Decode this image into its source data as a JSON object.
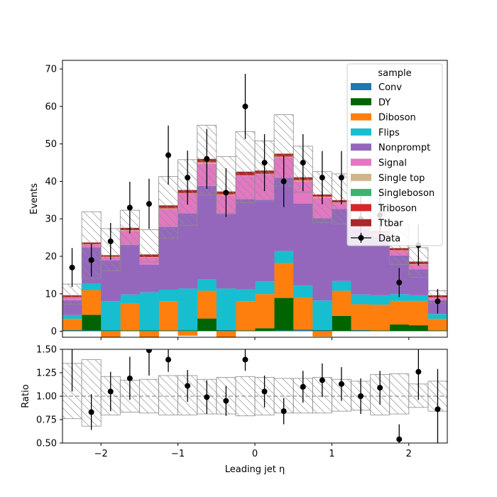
{
  "chart_data": {
    "type": "bar",
    "xlabel": "Leading jet  η",
    "x_edges": [
      -2.5,
      -2.25,
      -2.0,
      -1.75,
      -1.5,
      -1.25,
      -1.0,
      -0.75,
      -0.5,
      -0.25,
      0.0,
      0.25,
      0.5,
      0.75,
      1.0,
      1.25,
      1.5,
      1.75,
      2.0,
      2.25,
      2.5
    ],
    "main": {
      "ylabel": "Events",
      "ylim": [
        -1.6,
        72.3
      ],
      "yticks": [
        0,
        10,
        20,
        30,
        40,
        50,
        60,
        70
      ],
      "stack_order": [
        "Conv",
        "DY",
        "Diboson",
        "Flips",
        "Nonprompt",
        "Signal",
        "Single top",
        "Singleboson",
        "Triboson",
        "Ttbar"
      ],
      "series": [
        {
          "name": "Conv",
          "color": "#1f77b4",
          "values": [
            0.2,
            0.2,
            0.1,
            0.1,
            0.1,
            0.1,
            0.1,
            0.1,
            0.2,
            0.1,
            0.1,
            0.2,
            0.3,
            0.2,
            0.1,
            0.2,
            0.1,
            0.1,
            0.1,
            0.1
          ]
        },
        {
          "name": "DY",
          "color": "#006400",
          "values": [
            0.1,
            4.2,
            0.1,
            0.1,
            0.1,
            0.1,
            0.1,
            3.3,
            0.1,
            0.1,
            0.7,
            8.7,
            0.1,
            0.1,
            4.0,
            0.1,
            0.1,
            1.7,
            1.5,
            0.1
          ]
        },
        {
          "name": "Diboson",
          "color": "#ff7f0e",
          "values": [
            3.0,
            6.6,
            -1.6,
            7.3,
            -1.8,
            7.8,
            -1.2,
            7.4,
            -1.6,
            7.8,
            9.1,
            9.3,
            8.6,
            -1.4,
            6.7,
            6.9,
            6.9,
            6.3,
            6.5,
            3.1
          ]
        },
        {
          "name": "Flips",
          "color": "#17becf",
          "values": [
            1.0,
            1.8,
            7.8,
            2.3,
            10.2,
            3.1,
            11.2,
            3.0,
            11.1,
            3.2,
            3.4,
            3.2,
            3.2,
            7.9,
            2.6,
            2.6,
            2.5,
            1.8,
            1.5,
            1.3
          ]
        },
        {
          "name": "Nonprompt",
          "color": "#9467bd",
          "values": [
            4.0,
            9.6,
            11.0,
            13.3,
            7.4,
            16.8,
            20.1,
            25.0,
            19.9,
            24.1,
            21.8,
            19.6,
            21.9,
            22.0,
            19.2,
            17.2,
            15.7,
            10.3,
            6.9,
            3.7
          ]
        },
        {
          "name": "Signal",
          "color": "#e377c2",
          "values": [
            0.8,
            0.7,
            0.8,
            3.7,
            1.9,
            4.7,
            5.2,
            5.9,
            5.0,
            6.2,
            6.8,
            5.5,
            5.9,
            5.5,
            1.7,
            1.1,
            0.9,
            1.3,
            1.3,
            0.6
          ]
        },
        {
          "name": "Single top",
          "color": "#d2b48c",
          "values": [
            0.0,
            0.1,
            0.1,
            0.2,
            0.1,
            0.2,
            0.1,
            0.4,
            0.2,
            0.1,
            0.1,
            0.1,
            0.3,
            0.2,
            0.1,
            0.1,
            0.1,
            0.1,
            0.1,
            0.1
          ]
        },
        {
          "name": "Singleboson",
          "color": "#3cb371",
          "values": [
            0.0,
            0.0,
            0.0,
            0.0,
            0.0,
            0.0,
            0.0,
            0.0,
            0.0,
            0.0,
            0.0,
            0.0,
            0.0,
            0.0,
            0.0,
            0.0,
            0.0,
            0.0,
            0.0,
            0.0
          ]
        },
        {
          "name": "Triboson",
          "color": "#d62728",
          "values": [
            0.1,
            0.1,
            0.1,
            0.1,
            0.1,
            0.2,
            0.2,
            0.3,
            0.2,
            0.2,
            0.2,
            0.2,
            0.2,
            0.2,
            0.1,
            0.1,
            0.1,
            0.1,
            0.1,
            0.1
          ]
        },
        {
          "name": "Ttbar",
          "color": "#a52a2a",
          "values": [
            0.4,
            0.4,
            0.3,
            0.5,
            0.6,
            0.6,
            0.7,
            0.6,
            0.6,
            0.8,
            0.7,
            0.6,
            0.6,
            0.4,
            0.5,
            0.5,
            0.3,
            0.5,
            0.6,
            0.5
          ]
        }
      ],
      "uncertainty_band": {
        "low": [
          7.2,
          14.1,
          16.1,
          22.9,
          18.5,
          24.8,
          28.3,
          36.4,
          31.4,
          34.3,
          34.7,
          38.8,
          37.1,
          29.0,
          28.6,
          24.4,
          23.4,
          17.8,
          14.4,
          7.5
        ],
        "high": [
          12.6,
          31.9,
          27.4,
          32.3,
          27.1,
          41.3,
          45.8,
          55.0,
          46.6,
          53.3,
          50.8,
          57.8,
          49.4,
          42.6,
          42.0,
          34.6,
          32.0,
          28.6,
          22.3,
          10.8
        ]
      },
      "data": {
        "name": "Data",
        "x": [
          -2.375,
          -2.125,
          -1.875,
          -1.625,
          -1.375,
          -1.125,
          -0.875,
          -0.625,
          -0.375,
          -0.125,
          0.125,
          0.375,
          0.625,
          0.875,
          1.125,
          1.375,
          1.625,
          1.875,
          2.125,
          2.375
        ],
        "y": [
          17,
          19,
          24,
          33,
          34,
          47,
          41,
          46,
          37,
          60,
          45,
          40,
          45,
          41,
          41,
          30,
          31,
          13,
          23,
          8
        ],
        "yerr": [
          5.2,
          4.4,
          4.9,
          6.9,
          6.7,
          7.9,
          7.2,
          8.0,
          6.5,
          8.7,
          7.6,
          6.9,
          7.6,
          7.1,
          7.1,
          6.0,
          6.1,
          3.9,
          5.5,
          3.3
        ]
      },
      "legend": {
        "title": "sample",
        "position": "top-right"
      }
    },
    "ratio": {
      "ylabel": "Ratio",
      "ylim": [
        0.5,
        1.5
      ],
      "yticks": [
        "0.50",
        "0.75",
        "1.00",
        "1.25",
        "1.50"
      ],
      "band_low": [
        0.76,
        0.68,
        0.8,
        0.83,
        0.82,
        0.8,
        0.8,
        0.81,
        0.81,
        0.79,
        0.8,
        0.82,
        0.82,
        0.82,
        0.84,
        0.85,
        0.8,
        0.81,
        0.88,
        0.84
      ],
      "band_high": [
        1.35,
        1.39,
        1.21,
        1.17,
        1.18,
        1.22,
        1.22,
        1.18,
        1.2,
        1.21,
        1.2,
        1.19,
        1.19,
        1.2,
        1.18,
        1.16,
        1.23,
        1.24,
        1.13,
        1.16
      ],
      "y": [
        1.55,
        0.83,
        1.05,
        1.19,
        1.49,
        1.39,
        1.11,
        0.99,
        0.95,
        1.39,
        1.05,
        0.84,
        1.1,
        1.17,
        1.13,
        1.0,
        1.09,
        0.54,
        1.26,
        0.86
      ],
      "yerr": [
        0.5,
        0.19,
        0.21,
        0.23,
        0.27,
        0.13,
        0.17,
        0.18,
        0.16,
        0.12,
        0.17,
        0.14,
        0.17,
        0.18,
        0.18,
        0.19,
        0.18,
        0.16,
        0.3,
        0.43
      ],
      "reference": 1.0
    },
    "xticks": [
      -2,
      -1,
      0,
      1,
      2
    ],
    "xtick_labels": [
      "−2",
      "−1",
      "0",
      "1",
      "2"
    ]
  }
}
